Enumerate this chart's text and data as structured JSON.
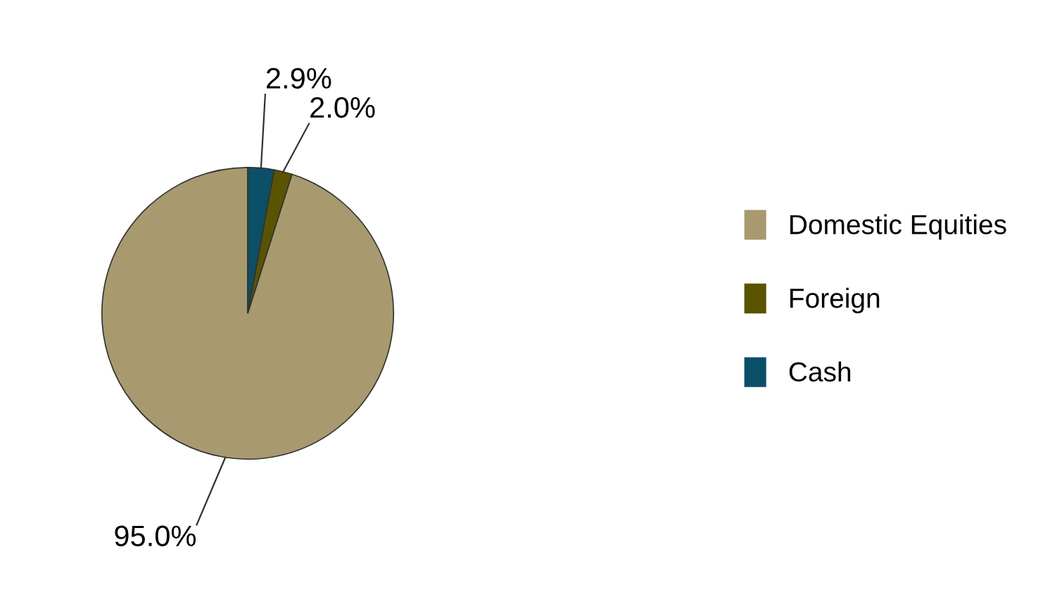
{
  "chart_data": {
    "type": "pie",
    "categories": [
      "Domestic Equities",
      "Foreign",
      "Cash"
    ],
    "values": [
      95.0,
      2.0,
      2.9
    ],
    "colors": [
      "#a89a6e",
      "#5a5400",
      "#0a5068"
    ],
    "value_labels": [
      "95.0%",
      "2.0%",
      "2.9%"
    ],
    "legend": "right"
  }
}
